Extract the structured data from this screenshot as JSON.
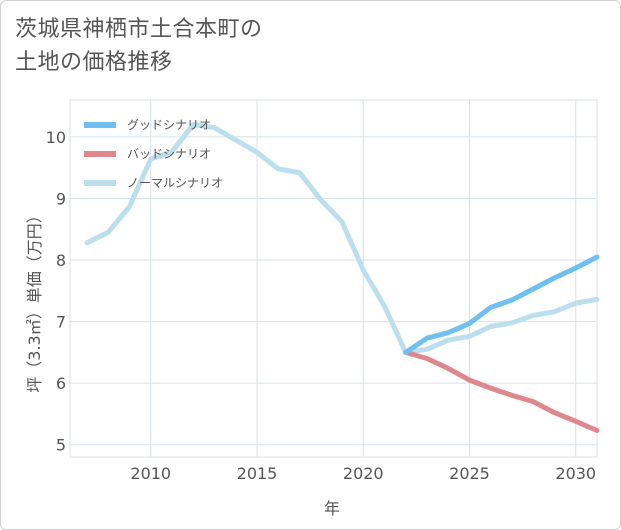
{
  "title_line1": "茨城県神栖市土合本町の",
  "title_line2": "土地の価格推移",
  "colors": {
    "good": "#6fbff0",
    "bad": "#e0868d",
    "normal": "#bcdfee",
    "grid": "#d8e2ea"
  },
  "chart_data": {
    "type": "line",
    "xlabel": "年",
    "ylabel": "坪（3.3㎡）単価（万円）",
    "xlim": [
      2006.2,
      2031
    ],
    "ylim": [
      4.8,
      10.6
    ],
    "xticks": [
      2010,
      2015,
      2020,
      2025,
      2030
    ],
    "yticks": [
      5,
      6,
      7,
      8,
      9,
      10
    ],
    "grid": true,
    "legend_position": "top-left",
    "series": [
      {
        "name": "グッドシナリオ",
        "color": "#6fbff0",
        "x": [
          2022,
          2023,
          2024,
          2025,
          2026,
          2027,
          2028,
          2029,
          2030,
          2031
        ],
        "y": [
          6.5,
          6.73,
          6.82,
          6.97,
          7.23,
          7.35,
          7.53,
          7.71,
          7.87,
          8.05
        ]
      },
      {
        "name": "バッドシナリオ",
        "color": "#e0868d",
        "x": [
          2022,
          2023,
          2024,
          2025,
          2026,
          2027,
          2028,
          2029,
          2030,
          2031
        ],
        "y": [
          6.5,
          6.4,
          6.24,
          6.05,
          5.92,
          5.8,
          5.7,
          5.52,
          5.38,
          5.23
        ]
      },
      {
        "name": "ノーマルシナリオ",
        "color": "#bcdfee",
        "x": [
          2007,
          2008,
          2009,
          2010,
          2011,
          2012,
          2013,
          2014,
          2015,
          2016,
          2017,
          2018,
          2019,
          2020,
          2021,
          2022,
          2023,
          2024,
          2025,
          2026,
          2027,
          2028,
          2029,
          2030,
          2031
        ],
        "y": [
          8.28,
          8.45,
          8.87,
          9.64,
          9.76,
          10.2,
          10.15,
          9.95,
          9.75,
          9.48,
          9.42,
          8.98,
          8.62,
          7.84,
          7.25,
          6.5,
          6.55,
          6.7,
          6.76,
          6.92,
          6.98,
          7.1,
          7.16,
          7.3,
          7.36
        ]
      }
    ]
  }
}
